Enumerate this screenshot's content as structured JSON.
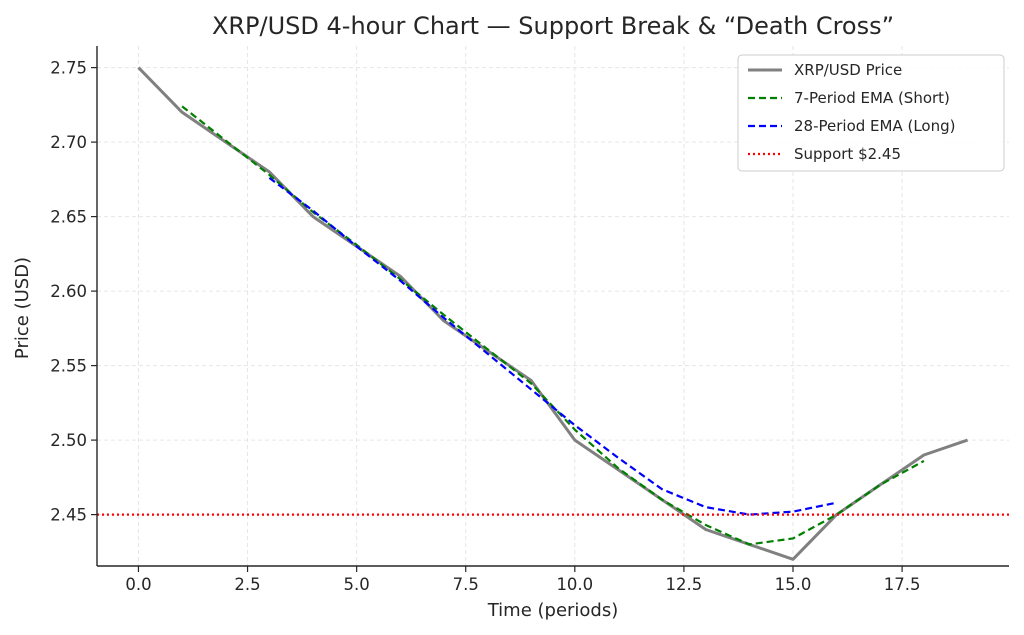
{
  "chart_data": {
    "type": "line",
    "title": "XRP/USD 4-hour Chart — Support Break & “Death Cross”",
    "xlabel": "Time (periods)",
    "ylabel": "Price (USD)",
    "xlim": [
      -0.95,
      19.95
    ],
    "ylim": [
      2.4155,
      2.7645
    ],
    "xticks": [
      0.0,
      2.5,
      5.0,
      7.5,
      10.0,
      12.5,
      15.0,
      17.5
    ],
    "xtick_labels": [
      "0.0",
      "2.5",
      "5.0",
      "7.5",
      "10.0",
      "12.5",
      "15.0",
      "17.5"
    ],
    "yticks": [
      2.45,
      2.5,
      2.55,
      2.6,
      2.65,
      2.7,
      2.75
    ],
    "ytick_labels": [
      "2.45",
      "2.50",
      "2.55",
      "2.60",
      "2.65",
      "2.70",
      "2.75"
    ],
    "grid": true,
    "legend_position": "top-right",
    "series": [
      {
        "name": "XRP/USD Price",
        "style": "solid",
        "color": "#808080",
        "x": [
          0,
          1,
          2,
          3,
          4,
          5,
          6,
          7,
          8,
          9,
          10,
          11,
          12,
          13,
          14,
          15,
          16,
          17,
          18,
          19
        ],
        "values": [
          2.75,
          2.72,
          2.7,
          2.68,
          2.65,
          2.63,
          2.61,
          2.58,
          2.56,
          2.54,
          2.5,
          2.48,
          2.46,
          2.44,
          2.43,
          2.42,
          2.45,
          2.47,
          2.49,
          2.5
        ]
      },
      {
        "name": "7-Period EMA (Short)",
        "style": "dashed",
        "color": "#008000",
        "x": [
          1,
          2,
          3,
          4,
          5,
          6,
          7,
          8,
          9,
          10,
          11,
          12,
          13,
          14,
          15,
          16,
          17,
          18
        ],
        "values": [
          2.724,
          2.701,
          2.678,
          2.653,
          2.631,
          2.608,
          2.584,
          2.561,
          2.538,
          2.507,
          2.481,
          2.46,
          2.443,
          2.43,
          2.434,
          2.45,
          2.47,
          2.486
        ]
      },
      {
        "name": "28-Period EMA (Long)",
        "style": "dashed",
        "color": "#0000ff",
        "x": [
          3,
          4,
          5,
          6,
          7,
          8,
          9,
          10,
          11,
          12,
          13,
          14,
          15,
          16
        ],
        "values": [
          2.676,
          2.654,
          2.63,
          2.607,
          2.582,
          2.558,
          2.534,
          2.51,
          2.488,
          2.467,
          2.455,
          2.45,
          2.452,
          2.458
        ]
      },
      {
        "name": "Support $2.45",
        "style": "dotted",
        "color": "#ff0000",
        "x": [
          -0.95,
          19.95
        ],
        "values": [
          2.45,
          2.45
        ]
      }
    ]
  }
}
